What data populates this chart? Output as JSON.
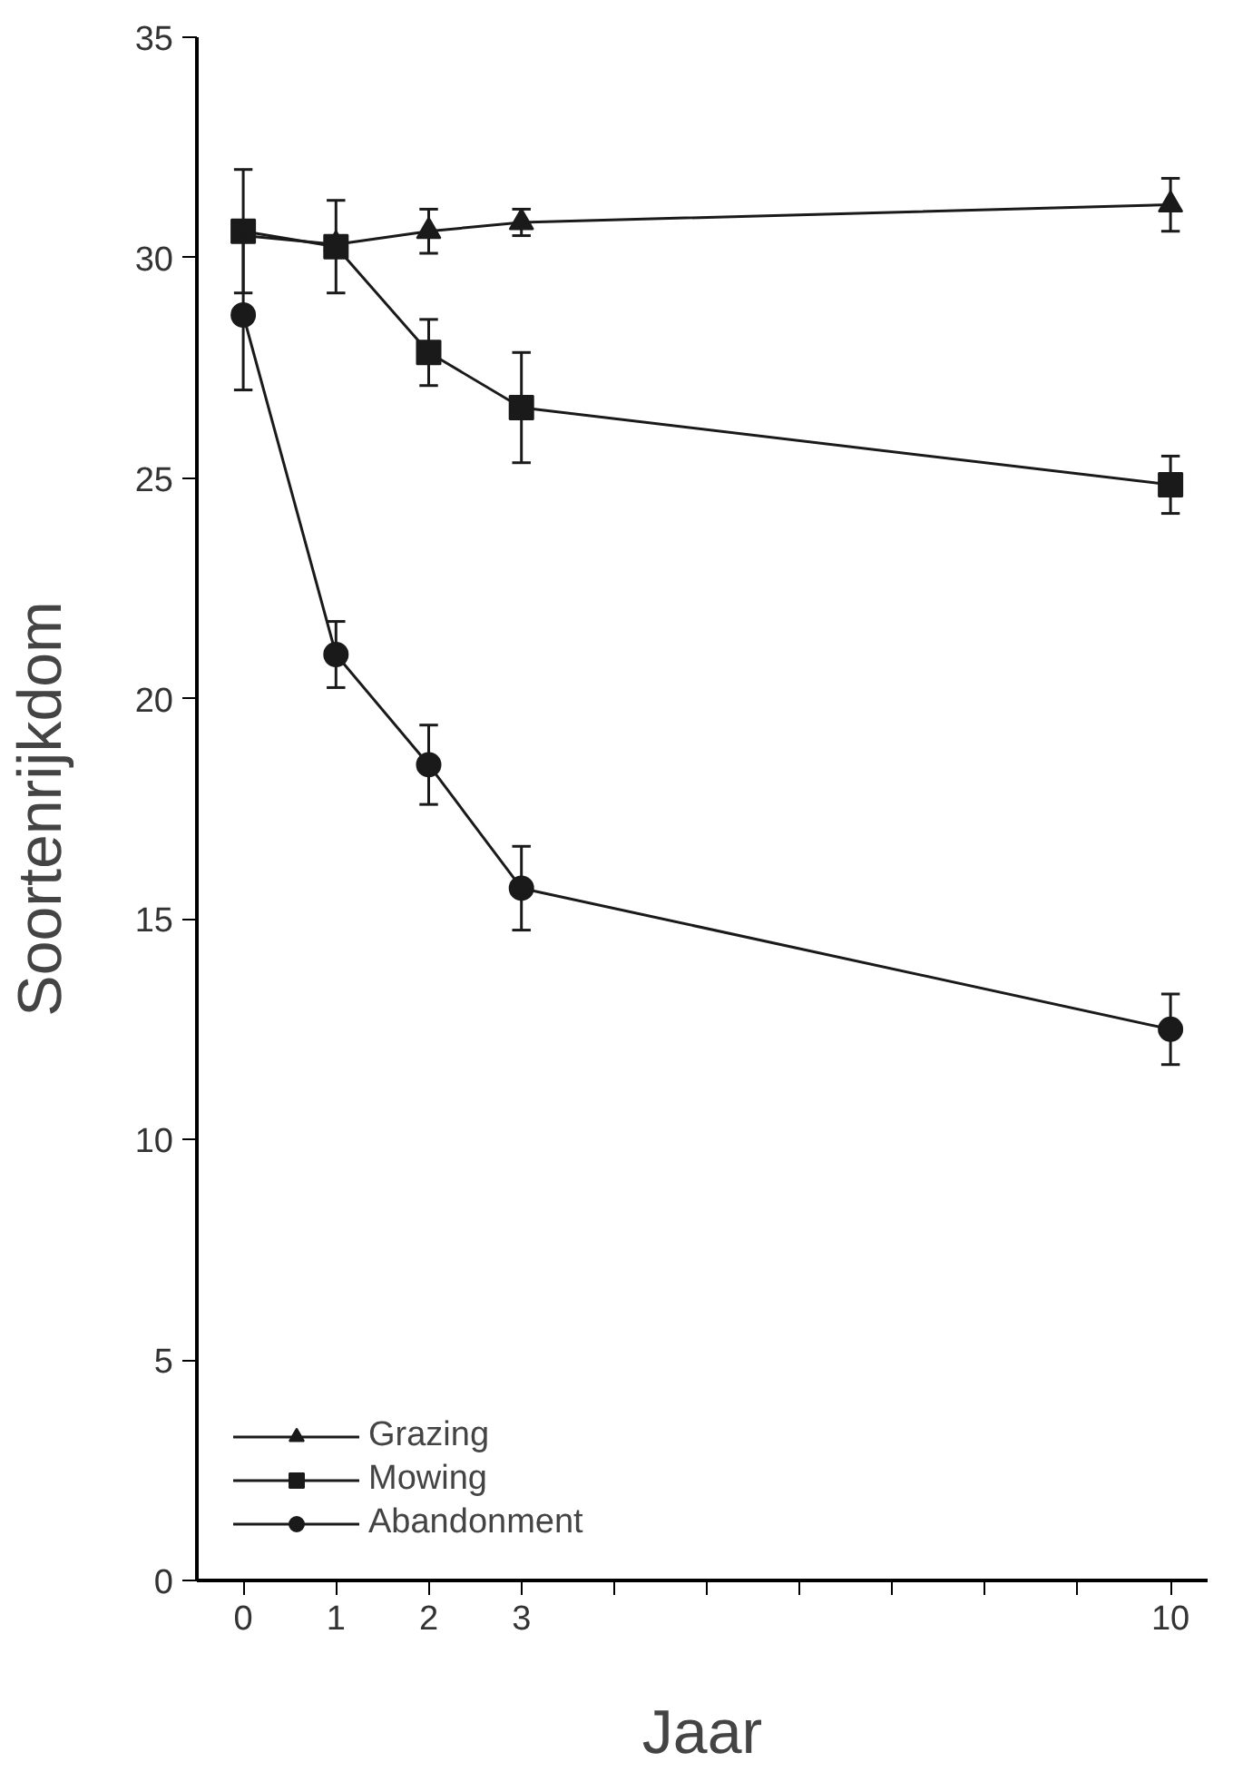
{
  "chart_data": {
    "type": "line",
    "xlabel": "Jaar",
    "ylabel": "Soortenrijkdom",
    "x": [
      0,
      1,
      2,
      3,
      10
    ],
    "series": [
      {
        "name": "Grazing",
        "color": "#1a1a1a",
        "marker": "triangle",
        "values": [
          30.5,
          30.3,
          30.6,
          30.8,
          31.2
        ],
        "errors": [
          null,
          null,
          0.5,
          0.3,
          0.6
        ]
      },
      {
        "name": "Mowing",
        "color": "#1a1a1a",
        "marker": "square",
        "values": [
          30.6,
          30.25,
          27.85,
          26.6,
          24.85
        ],
        "errors": [
          1.4,
          1.05,
          0.75,
          1.25,
          0.65
        ]
      },
      {
        "name": "Abandonment",
        "color": "#1a1a1a",
        "marker": "circle",
        "values": [
          28.7,
          21.0,
          18.5,
          15.7,
          12.5
        ],
        "errors": [
          1.7,
          0.75,
          0.9,
          0.95,
          0.8
        ]
      }
    ],
    "xlim": [
      -0.5,
      10.4
    ],
    "ylim": [
      0,
      35
    ],
    "xticks": [
      0,
      1,
      2,
      3,
      {
        "value": 4,
        "label": null
      },
      {
        "value": 5,
        "label": null
      },
      {
        "value": 6,
        "label": null
      },
      {
        "value": 7,
        "label": null
      },
      {
        "value": 8,
        "label": null
      },
      {
        "value": 9,
        "label": null
      },
      10
    ],
    "yticks": [
      0,
      5,
      10,
      15,
      20,
      25,
      30,
      35
    ],
    "grid": false,
    "legend": "bottom left",
    "line_style": "solid"
  }
}
